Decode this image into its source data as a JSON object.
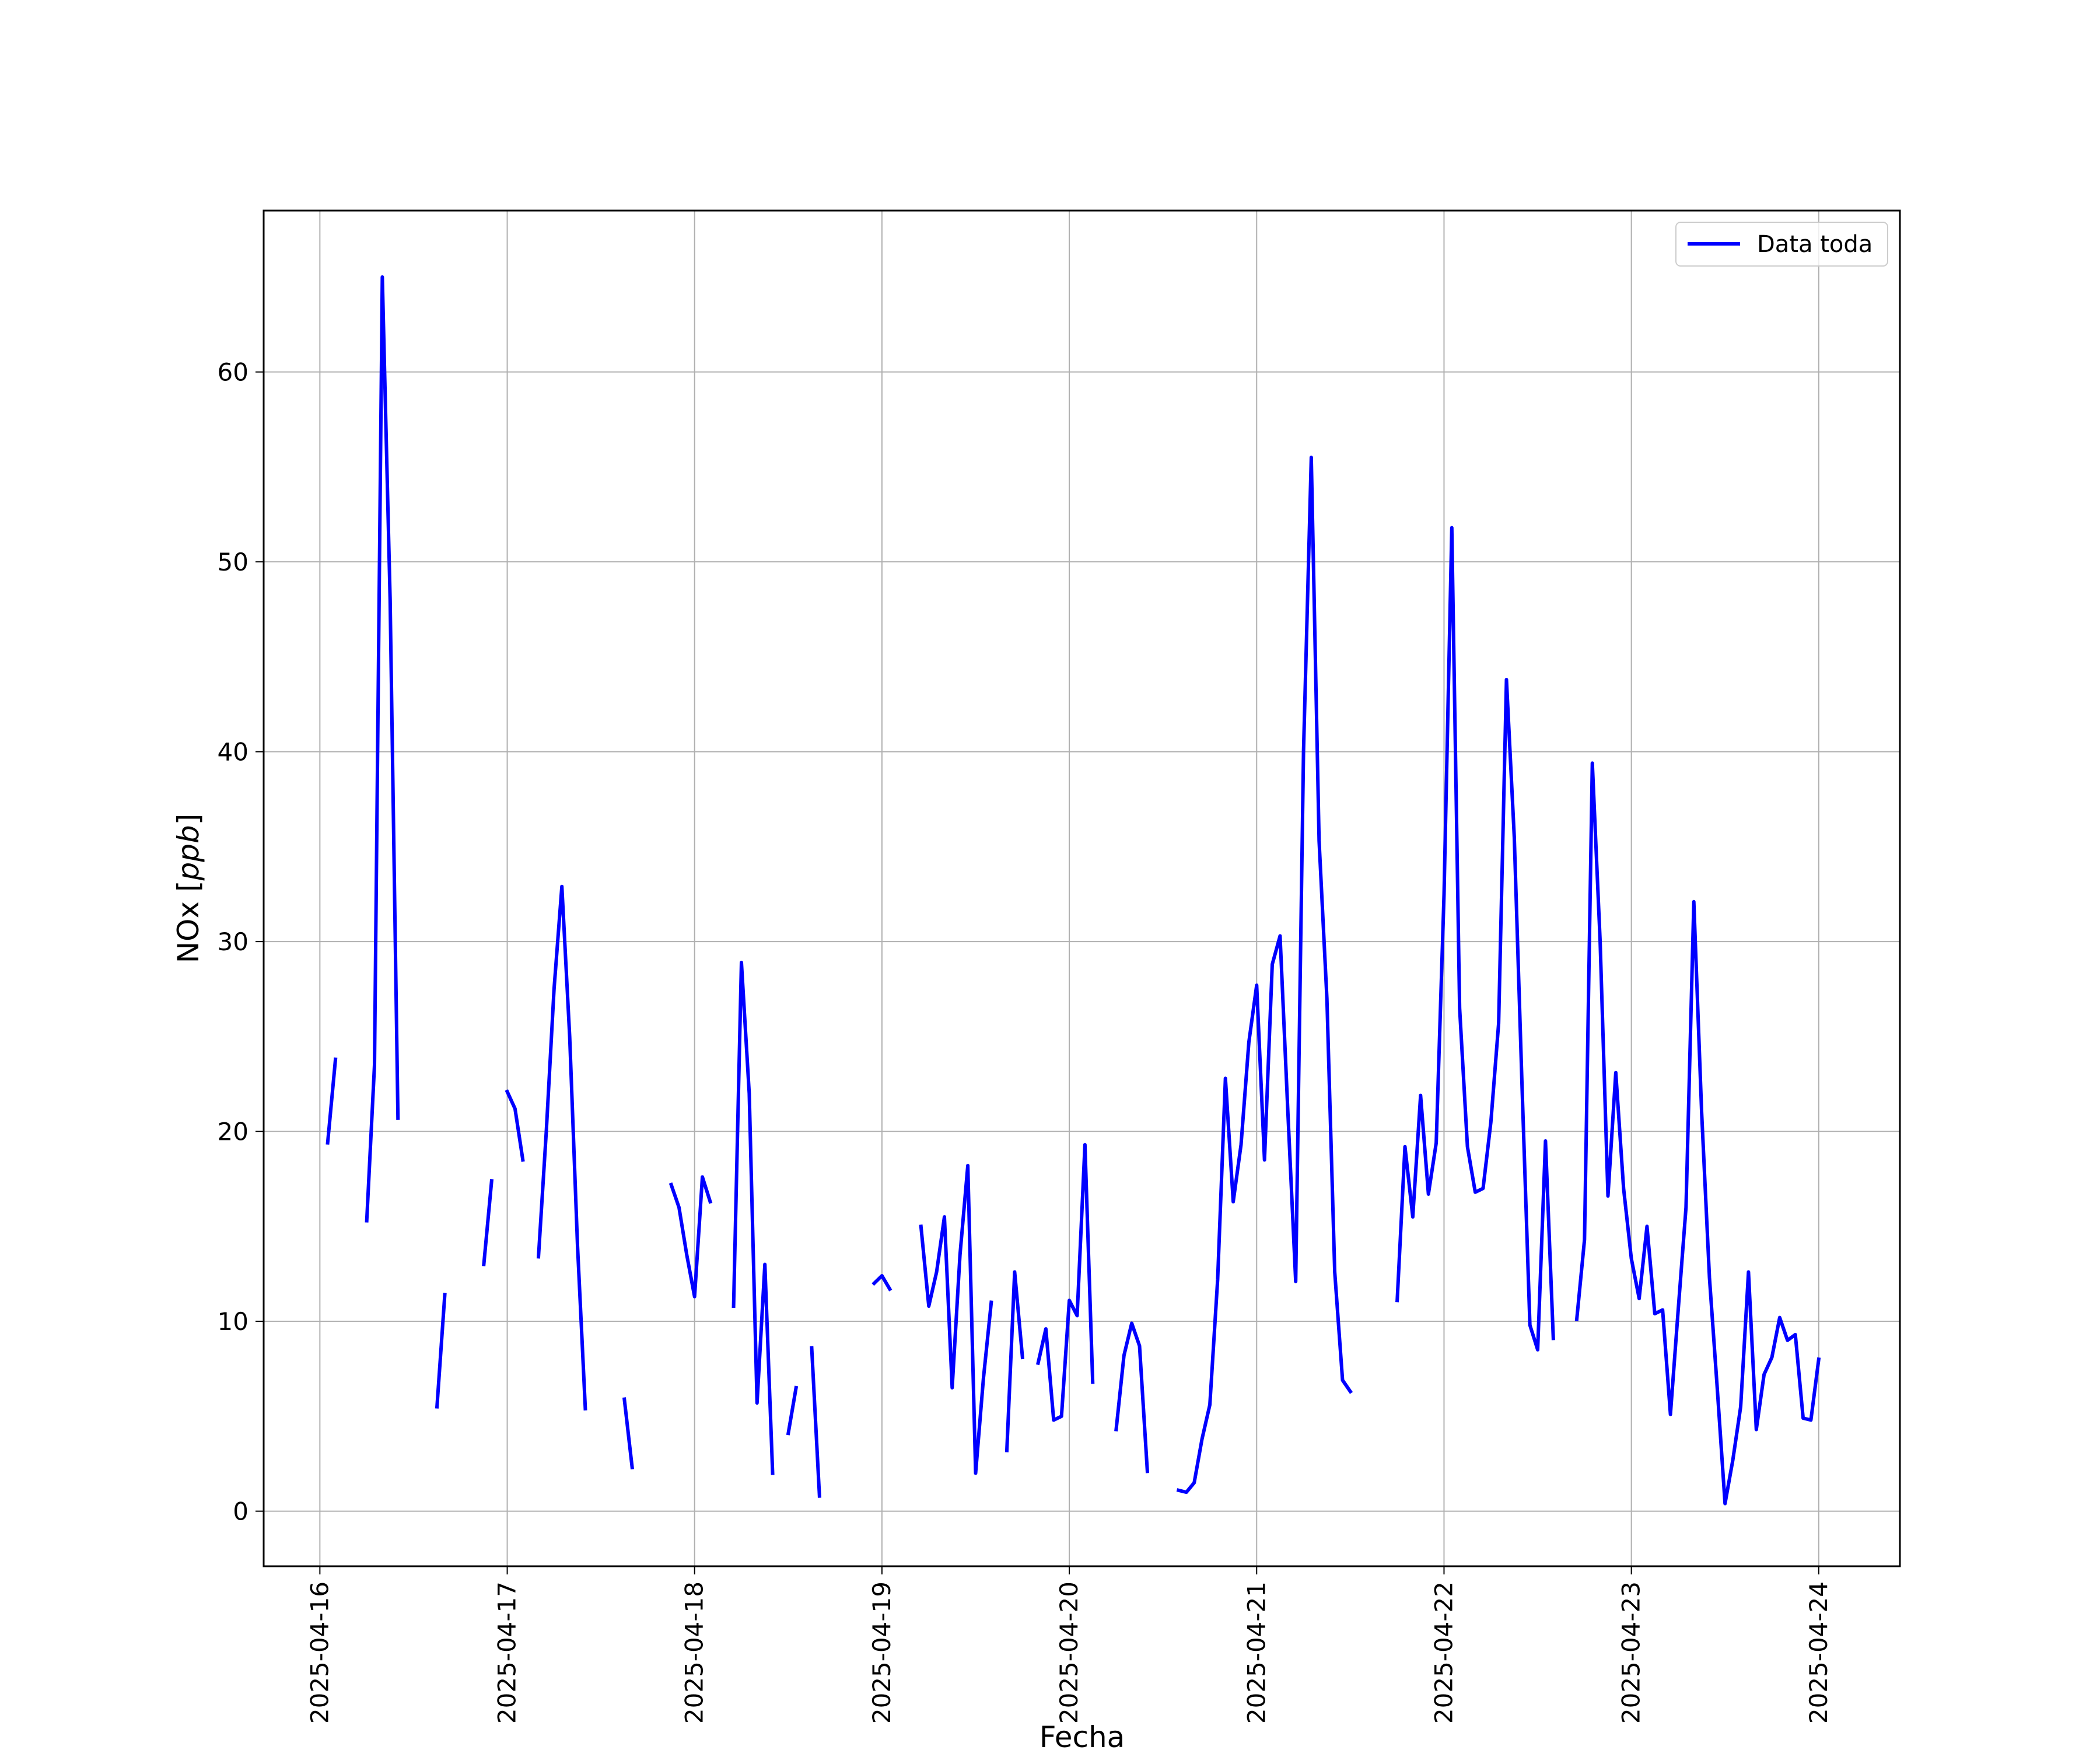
{
  "chart_data": {
    "type": "line",
    "xlabel": "Fecha",
    "ylabel": "NOx [ppb]",
    "ylabel_parts": [
      "NOx [",
      "ppb",
      "]"
    ],
    "xlim": [
      "2025-04-15T16:48",
      "2025-04-24T10:24"
    ],
    "ylim": [
      -2.9,
      68.5
    ],
    "x_ticks": [
      "2025-04-16",
      "2025-04-17",
      "2025-04-18",
      "2025-04-19",
      "2025-04-20",
      "2025-04-21",
      "2025-04-22",
      "2025-04-23",
      "2025-04-24"
    ],
    "y_ticks": [
      0,
      10,
      20,
      30,
      40,
      50,
      60
    ],
    "grid": true,
    "legend_position": "top-right",
    "series": [
      {
        "name": "Data toda",
        "color": "#0000ff",
        "segments": [
          [
            [
              "2025-04-16T01:00",
              19.4
            ],
            [
              "2025-04-16T02:00",
              23.8
            ]
          ],
          [
            [
              "2025-04-16T06:00",
              15.3
            ],
            [
              "2025-04-16T07:00",
              23.5
            ],
            [
              "2025-04-16T08:00",
              65.0
            ],
            [
              "2025-04-16T09:00",
              48.0
            ],
            [
              "2025-04-16T10:00",
              20.7
            ]
          ],
          [
            [
              "2025-04-16T15:00",
              5.5
            ],
            [
              "2025-04-16T16:00",
              11.4
            ]
          ],
          [
            [
              "2025-04-16T21:00",
              13.0
            ],
            [
              "2025-04-16T22:00",
              17.4
            ]
          ],
          [
            [
              "2025-04-17T00:00",
              22.1
            ],
            [
              "2025-04-17T01:00",
              21.2
            ],
            [
              "2025-04-17T02:00",
              18.5
            ]
          ],
          [
            [
              "2025-04-17T04:00",
              13.4
            ],
            [
              "2025-04-17T05:00",
              20.0
            ],
            [
              "2025-04-17T06:00",
              27.5
            ],
            [
              "2025-04-17T07:00",
              32.9
            ],
            [
              "2025-04-17T08:00",
              25.0
            ],
            [
              "2025-04-17T09:00",
              14.0
            ],
            [
              "2025-04-17T10:00",
              5.4
            ]
          ],
          [
            [
              "2025-04-17T15:00",
              5.9
            ],
            [
              "2025-04-17T16:00",
              2.3
            ]
          ],
          [
            [
              "2025-04-17T21:00",
              17.2
            ],
            [
              "2025-04-17T22:00",
              16.0
            ],
            [
              "2025-04-17T23:00",
              13.5
            ],
            [
              "2025-04-18T00:00",
              11.3
            ],
            [
              "2025-04-18T01:00",
              17.6
            ],
            [
              "2025-04-18T02:00",
              16.3
            ]
          ],
          [
            [
              "2025-04-18T05:00",
              10.8
            ],
            [
              "2025-04-18T06:00",
              28.9
            ],
            [
              "2025-04-18T07:00",
              22.0
            ],
            [
              "2025-04-18T08:00",
              5.7
            ],
            [
              "2025-04-18T09:00",
              13.0
            ],
            [
              "2025-04-18T10:00",
              2.0
            ]
          ],
          [
            [
              "2025-04-18T12:00",
              4.1
            ],
            [
              "2025-04-18T13:00",
              6.5
            ]
          ],
          [
            [
              "2025-04-18T15:00",
              8.6
            ],
            [
              "2025-04-18T16:00",
              0.8
            ]
          ],
          [
            [
              "2025-04-18T23:00",
              12.0
            ],
            [
              "2025-04-19T00:00",
              12.4
            ],
            [
              "2025-04-19T01:00",
              11.7
            ]
          ],
          [
            [
              "2025-04-19T05:00",
              15.0
            ],
            [
              "2025-04-19T06:00",
              10.8
            ],
            [
              "2025-04-19T07:00",
              12.6
            ],
            [
              "2025-04-19T08:00",
              15.5
            ],
            [
              "2025-04-19T09:00",
              6.5
            ],
            [
              "2025-04-19T10:00",
              13.5
            ],
            [
              "2025-04-19T11:00",
              18.2
            ],
            [
              "2025-04-19T12:00",
              2.0
            ],
            [
              "2025-04-19T13:00",
              7.0
            ],
            [
              "2025-04-19T14:00",
              11.0
            ]
          ],
          [
            [
              "2025-04-19T16:00",
              3.2
            ],
            [
              "2025-04-19T17:00",
              12.6
            ],
            [
              "2025-04-19T18:00",
              8.1
            ]
          ],
          [
            [
              "2025-04-19T20:00",
              7.8
            ],
            [
              "2025-04-19T21:00",
              9.6
            ],
            [
              "2025-04-19T22:00",
              4.8
            ],
            [
              "2025-04-19T23:00",
              5.0
            ],
            [
              "2025-04-20T00:00",
              11.1
            ],
            [
              "2025-04-20T01:00",
              10.3
            ],
            [
              "2025-04-20T02:00",
              19.3
            ],
            [
              "2025-04-20T03:00",
              6.8
            ]
          ],
          [
            [
              "2025-04-20T06:00",
              4.3
            ],
            [
              "2025-04-20T07:00",
              8.2
            ],
            [
              "2025-04-20T08:00",
              9.9
            ],
            [
              "2025-04-20T09:00",
              8.7
            ],
            [
              "2025-04-20T10:00",
              2.1
            ]
          ],
          [
            [
              "2025-04-20T14:00",
              1.1
            ],
            [
              "2025-04-20T15:00",
              1.0
            ],
            [
              "2025-04-20T16:00",
              1.5
            ],
            [
              "2025-04-20T17:00",
              3.8
            ],
            [
              "2025-04-20T18:00",
              5.6
            ],
            [
              "2025-04-20T19:00",
              12.2
            ],
            [
              "2025-04-20T20:00",
              22.8
            ],
            [
              "2025-04-20T21:00",
              16.3
            ],
            [
              "2025-04-20T22:00",
              19.3
            ],
            [
              "2025-04-20T23:00",
              24.7
            ],
            [
              "2025-04-21T00:00",
              27.7
            ],
            [
              "2025-04-21T01:00",
              18.5
            ],
            [
              "2025-04-21T02:00",
              28.8
            ],
            [
              "2025-04-21T03:00",
              30.3
            ],
            [
              "2025-04-21T04:00",
              21.0
            ],
            [
              "2025-04-21T05:00",
              12.1
            ],
            [
              "2025-04-21T06:00",
              40.0
            ],
            [
              "2025-04-21T07:00",
              55.5
            ],
            [
              "2025-04-21T08:00",
              35.3
            ],
            [
              "2025-04-21T09:00",
              27.0
            ],
            [
              "2025-04-21T10:00",
              12.6
            ],
            [
              "2025-04-21T11:00",
              6.9
            ],
            [
              "2025-04-21T12:00",
              6.3
            ]
          ],
          [
            [
              "2025-04-21T18:00",
              11.1
            ],
            [
              "2025-04-21T19:00",
              19.2
            ],
            [
              "2025-04-21T20:00",
              15.5
            ],
            [
              "2025-04-21T21:00",
              21.9
            ],
            [
              "2025-04-21T22:00",
              16.7
            ],
            [
              "2025-04-21T23:00",
              19.4
            ],
            [
              "2025-04-22T00:00",
              32.5
            ],
            [
              "2025-04-22T01:00",
              51.8
            ],
            [
              "2025-04-22T02:00",
              26.5
            ],
            [
              "2025-04-22T03:00",
              19.2
            ],
            [
              "2025-04-22T04:00",
              16.8
            ],
            [
              "2025-04-22T05:00",
              17.0
            ],
            [
              "2025-04-22T06:00",
              20.5
            ],
            [
              "2025-04-22T07:00",
              25.7
            ],
            [
              "2025-04-22T08:00",
              43.8
            ],
            [
              "2025-04-22T09:00",
              35.5
            ],
            [
              "2025-04-22T10:00",
              22.3
            ],
            [
              "2025-04-22T11:00",
              9.8
            ],
            [
              "2025-04-22T12:00",
              8.5
            ],
            [
              "2025-04-22T13:00",
              19.5
            ],
            [
              "2025-04-22T14:00",
              9.1
            ]
          ],
          [
            [
              "2025-04-22T17:00",
              10.1
            ],
            [
              "2025-04-22T18:00",
              14.3
            ],
            [
              "2025-04-22T19:00",
              39.4
            ],
            [
              "2025-04-22T20:00",
              30.0
            ],
            [
              "2025-04-22T21:00",
              16.6
            ],
            [
              "2025-04-22T22:00",
              23.1
            ],
            [
              "2025-04-22T23:00",
              17.0
            ],
            [
              "2025-04-23T00:00",
              13.3
            ],
            [
              "2025-04-23T01:00",
              11.2
            ],
            [
              "2025-04-23T02:00",
              15.0
            ],
            [
              "2025-04-23T03:00",
              10.4
            ],
            [
              "2025-04-23T04:00",
              10.6
            ],
            [
              "2025-04-23T05:00",
              5.1
            ],
            [
              "2025-04-23T06:00",
              10.6
            ],
            [
              "2025-04-23T07:00",
              16.0
            ],
            [
              "2025-04-23T08:00",
              32.1
            ],
            [
              "2025-04-23T09:00",
              21.0
            ],
            [
              "2025-04-23T10:00",
              12.3
            ],
            [
              "2025-04-23T11:00",
              6.5
            ],
            [
              "2025-04-23T12:00",
              0.4
            ],
            [
              "2025-04-23T13:00",
              2.7
            ],
            [
              "2025-04-23T14:00",
              5.5
            ],
            [
              "2025-04-23T15:00",
              12.6
            ],
            [
              "2025-04-23T16:00",
              4.3
            ],
            [
              "2025-04-23T17:00",
              7.2
            ],
            [
              "2025-04-23T18:00",
              8.1
            ],
            [
              "2025-04-23T19:00",
              10.2
            ],
            [
              "2025-04-23T20:00",
              9.0
            ],
            [
              "2025-04-23T21:00",
              9.3
            ],
            [
              "2025-04-23T22:00",
              4.9
            ],
            [
              "2025-04-23T23:00",
              4.8
            ],
            [
              "2025-04-24T00:00",
              8.0
            ]
          ]
        ]
      }
    ]
  }
}
